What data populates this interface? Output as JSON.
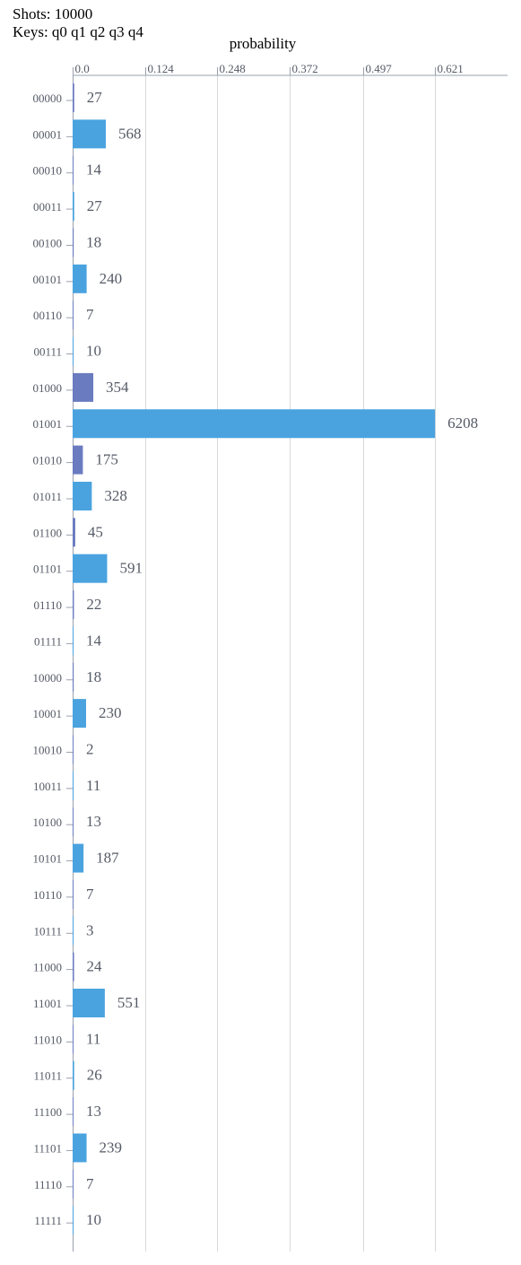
{
  "header": {
    "shots_line": "Shots: 10000",
    "keys_line": "Keys: q0 q1 q2 q3 q4"
  },
  "colors": {
    "bar_primary": "#4aa3df",
    "bar_secondary": "#6a7bc0",
    "grid": "#d9d9d9",
    "axis": "#9aa0ad",
    "text": "#555a66"
  },
  "chart_data": {
    "type": "bar",
    "orientation": "horizontal",
    "xlabel": "probability",
    "ylabel": "",
    "xlim": [
      0,
      0.745
    ],
    "xticks": [
      0.0,
      0.124,
      0.248,
      0.372,
      0.497,
      0.621
    ],
    "xtick_labels": [
      "0.0",
      "0.124",
      "0.248",
      "0.372",
      "0.497",
      "0.621"
    ],
    "grid": true,
    "categories": [
      "00000",
      "00001",
      "00010",
      "00011",
      "00100",
      "00101",
      "00110",
      "00111",
      "01000",
      "01001",
      "01010",
      "01011",
      "01100",
      "01101",
      "01110",
      "01111",
      "10000",
      "10001",
      "10010",
      "10011",
      "10100",
      "10101",
      "10110",
      "10111",
      "11000",
      "11001",
      "11010",
      "11011",
      "11100",
      "11101",
      "11110",
      "11111"
    ],
    "counts": [
      27,
      568,
      14,
      27,
      18,
      240,
      7,
      10,
      354,
      6208,
      175,
      328,
      45,
      591,
      22,
      14,
      18,
      230,
      2,
      11,
      13,
      187,
      7,
      3,
      24,
      551,
      11,
      26,
      13,
      239,
      7,
      10
    ],
    "bar_colors": [
      "#6a7bc0",
      "#4aa3df",
      "#6a7bc0",
      "#4aa3df",
      "#6a7bc0",
      "#4aa3df",
      "#6a7bc0",
      "#4aa3df",
      "#6a7bc0",
      "#4aa3df",
      "#6a7bc0",
      "#4aa3df",
      "#6a7bc0",
      "#4aa3df",
      "#6a7bc0",
      "#4aa3df",
      "#6a7bc0",
      "#4aa3df",
      "#6a7bc0",
      "#4aa3df",
      "#6a7bc0",
      "#4aa3df",
      "#6a7bc0",
      "#4aa3df",
      "#6a7bc0",
      "#4aa3df",
      "#6a7bc0",
      "#4aa3df",
      "#6a7bc0",
      "#4aa3df",
      "#6a7bc0",
      "#4aa3df"
    ]
  }
}
